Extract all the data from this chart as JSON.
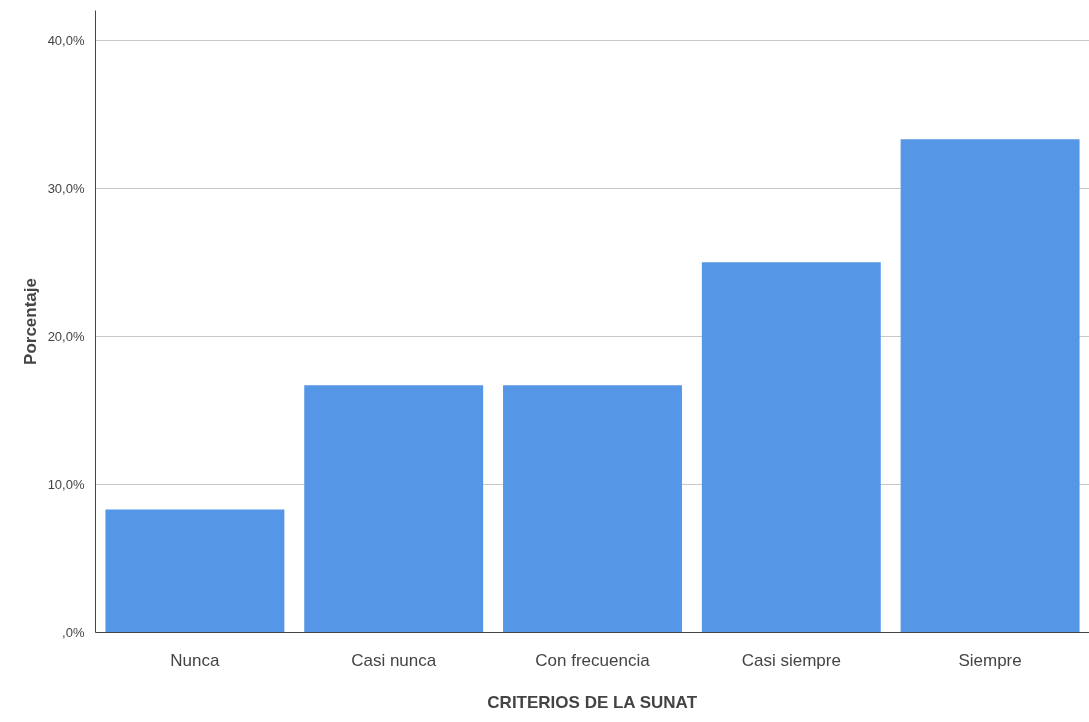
{
  "chart_data": {
    "type": "bar",
    "xlabel": "CRITERIOS DE LA SUNAT",
    "ylabel": "Porcentaje",
    "categories": [
      "Nunca",
      "Casi nunca",
      "Con frecuencia",
      "Casi siempre",
      "Siempre"
    ],
    "values": [
      8.3,
      16.7,
      16.7,
      25.0,
      33.3
    ],
    "color": "#5596e6",
    "ylim": [
      0,
      42
    ],
    "yticks": [
      {
        "value": 0,
        "label": ",0%"
      },
      {
        "value": 10,
        "label": "10,0%"
      },
      {
        "value": 20,
        "label": "20,0%"
      },
      {
        "value": 30,
        "label": "30,0%"
      },
      {
        "value": 40,
        "label": "40,0%"
      }
    ],
    "grid": "y"
  }
}
